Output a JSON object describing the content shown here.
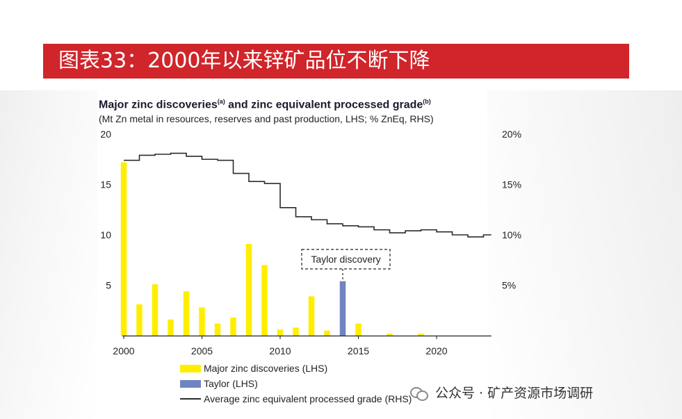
{
  "header": {
    "title": "图表33：2000年以来锌矿品位不断下降"
  },
  "watermark": {
    "text": "公众号 · 矿产资源市场调研",
    "icon": "wechat-icon"
  },
  "chart_data": {
    "type": "bar",
    "title": "Major zinc discoveries",
    "title_sup_a": "(a)",
    "title_mid": " and zinc equivalent processed grade",
    "title_sup_b": "(b)",
    "subtitle": "(Mt Zn metal in resources, reserves and past production, LHS; % ZnEq, RHS)",
    "xlim": [
      2000,
      2023.5
    ],
    "x_ticks": [
      2000,
      2005,
      2010,
      2015,
      2020
    ],
    "y_left": {
      "range": [
        0,
        20
      ],
      "ticks": [
        5,
        10,
        15,
        20
      ],
      "tick_labels": [
        "5",
        "10",
        "15",
        "20"
      ]
    },
    "y_right": {
      "range": [
        0,
        20
      ],
      "ticks": [
        5,
        10,
        15,
        20
      ],
      "tick_labels": [
        "5%",
        "10%",
        "15%",
        "20%"
      ]
    },
    "series": [
      {
        "name": "Major zinc discoveries (LHS)",
        "kind": "bar",
        "color": "#ffee00",
        "x": [
          2000,
          2001,
          2002,
          2003,
          2004,
          2005,
          2006,
          2007,
          2008,
          2009,
          2010,
          2011,
          2012,
          2013,
          2015,
          2017,
          2019
        ],
        "values": [
          17.2,
          3.1,
          5.1,
          1.6,
          4.4,
          2.8,
          1.2,
          1.8,
          9.1,
          7.0,
          0.6,
          0.8,
          3.9,
          0.5,
          1.2,
          0.2,
          0.2
        ]
      },
      {
        "name": "Taylor (LHS)",
        "kind": "bar",
        "color": "#6f84c0",
        "x": [
          2014
        ],
        "values": [
          5.4
        ]
      },
      {
        "name": "Average zinc equivalent processed grade (RHS)",
        "kind": "step",
        "color": "#2b2b2b",
        "x": [
          2000,
          2001,
          2002,
          2003,
          2004,
          2005,
          2006,
          2007,
          2008,
          2009,
          2010,
          2011,
          2012,
          2013,
          2014,
          2015,
          2016,
          2017,
          2018,
          2019,
          2020,
          2021,
          2022,
          2023
        ],
        "values": [
          17.4,
          17.9,
          18.0,
          18.1,
          17.8,
          17.5,
          17.4,
          16.1,
          15.3,
          15.1,
          12.7,
          11.8,
          11.5,
          11.1,
          10.9,
          10.8,
          10.5,
          10.2,
          10.4,
          10.5,
          10.3,
          10.0,
          9.8,
          10.0
        ]
      }
    ],
    "annotation": {
      "text": "Taylor discovery",
      "x": 2014
    },
    "legend": {
      "placement": "bottom-left",
      "items": [
        "Major zinc discoveries (LHS)",
        "Taylor (LHS)",
        "Average zinc equivalent processed grade (RHS)"
      ]
    }
  }
}
